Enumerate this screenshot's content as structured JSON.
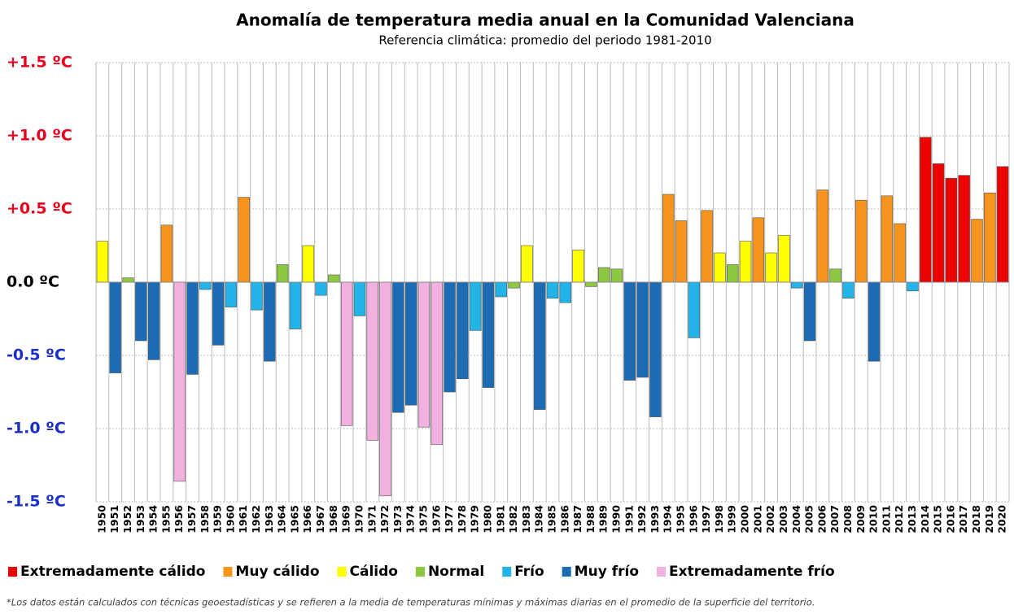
{
  "chart_data": {
    "type": "bar",
    "title": "Anomalía de temperatura media anual en la Comunidad Valenciana",
    "subtitle": "Referencia climática: promedio del periodo 1981-2010",
    "categories": [
      "1950",
      "1951",
      "1952",
      "1953",
      "1954",
      "1955",
      "1956",
      "1957",
      "1958",
      "1959",
      "1960",
      "1961",
      "1962",
      "1963",
      "1964",
      "1965",
      "1966",
      "1967",
      "1968",
      "1969",
      "1970",
      "1971",
      "1972",
      "1973",
      "1974",
      "1975",
      "1976",
      "1977",
      "1978",
      "1979",
      "1980",
      "1981",
      "1982",
      "1983",
      "1984",
      "1985",
      "1986",
      "1987",
      "1988",
      "1989",
      "1990",
      "1991",
      "1992",
      "1993",
      "1994",
      "1995",
      "1996",
      "1997",
      "1998",
      "1999",
      "2000",
      "2001",
      "2002",
      "2003",
      "2004",
      "2005",
      "2006",
      "2007",
      "2008",
      "2009",
      "2010",
      "2011",
      "2012",
      "2013",
      "2014",
      "2015",
      "2016",
      "2017",
      "2018",
      "2019",
      "2020"
    ],
    "values": [
      0.28,
      -0.62,
      0.03,
      -0.4,
      -0.53,
      0.39,
      -1.36,
      -0.63,
      -0.05,
      -0.43,
      -0.17,
      0.58,
      -0.19,
      -0.54,
      0.12,
      -0.32,
      0.25,
      -0.09,
      0.05,
      -0.98,
      -0.23,
      -1.08,
      -1.46,
      -0.89,
      -0.84,
      -0.99,
      -1.11,
      -0.75,
      -0.66,
      -0.33,
      -0.72,
      -0.1,
      -0.04,
      0.25,
      -0.87,
      -0.11,
      -0.14,
      0.22,
      -0.03,
      0.1,
      0.09,
      -0.67,
      -0.65,
      -0.92,
      0.6,
      0.42,
      -0.38,
      0.49,
      0.2,
      0.12,
      0.28,
      0.44,
      0.2,
      0.32,
      -0.04,
      -0.4,
      0.63,
      0.09,
      -0.11,
      0.56,
      -0.54,
      0.59,
      0.4,
      -0.06,
      0.99,
      0.81,
      0.71,
      0.73,
      0.43,
      0.61,
      0.79
    ],
    "colors": [
      "#ffff00",
      "#1b6bb5",
      "#8dc63f",
      "#1b6bb5",
      "#1b6bb5",
      "#f7941d",
      "#f0b0e0",
      "#1b6bb5",
      "#22b4e8",
      "#1b6bb5",
      "#22b4e8",
      "#f7941d",
      "#22b4e8",
      "#1b6bb5",
      "#8dc63f",
      "#22b4e8",
      "#ffff00",
      "#22b4e8",
      "#8dc63f",
      "#f0b0e0",
      "#22b4e8",
      "#f0b0e0",
      "#f0b0e0",
      "#1b6bb5",
      "#1b6bb5",
      "#f0b0e0",
      "#f0b0e0",
      "#1b6bb5",
      "#1b6bb5",
      "#22b4e8",
      "#1b6bb5",
      "#22b4e8",
      "#8dc63f",
      "#ffff00",
      "#1b6bb5",
      "#22b4e8",
      "#22b4e8",
      "#ffff00",
      "#8dc63f",
      "#8dc63f",
      "#8dc63f",
      "#1b6bb5",
      "#1b6bb5",
      "#1b6bb5",
      "#f7941d",
      "#f7941d",
      "#22b4e8",
      "#f7941d",
      "#ffff00",
      "#8dc63f",
      "#ffff00",
      "#f7941d",
      "#ffff00",
      "#ffff00",
      "#22b4e8",
      "#1b6bb5",
      "#f7941d",
      "#8dc63f",
      "#22b4e8",
      "#f7941d",
      "#1b6bb5",
      "#f7941d",
      "#f7941d",
      "#22b4e8",
      "#ee0000",
      "#ee0000",
      "#ee0000",
      "#ee0000",
      "#f7941d",
      "#f7941d",
      "#ee0000"
    ],
    "ylim": [
      -1.5,
      1.5
    ],
    "yticks": [
      {
        "value": 1.5,
        "label": "+1.5 ºC"
      },
      {
        "value": 1.0,
        "label": "+1.0 ºC"
      },
      {
        "value": 0.5,
        "label": "+0.5 ºC"
      },
      {
        "value": 0,
        "label": "0.0 ºC"
      },
      {
        "value": -0.5,
        "label": "-0.5 ºC"
      },
      {
        "value": -1.0,
        "label": "-1.0 ºC"
      },
      {
        "value": -1.5,
        "label": "-1.5 ºC"
      }
    ],
    "grid": true,
    "legend": [
      {
        "name": "Extremadamente cálido",
        "color": "#ee0000"
      },
      {
        "name": "Muy cálido",
        "color": "#f7941d"
      },
      {
        "name": "Cálido",
        "color": "#ffff00"
      },
      {
        "name": "Normal",
        "color": "#8dc63f"
      },
      {
        "name": "Frío",
        "color": "#22b4e8"
      },
      {
        "name": "Muy frío",
        "color": "#1b6bb5"
      },
      {
        "name": "Extremadamente frío",
        "color": "#f0b0e0"
      }
    ],
    "footnote": "*Los datos están calculados con técnicas geoestadísticas y se refieren a la media de temperaturas mínimas y máximas diarias en el promedio de la superficie del territorio."
  }
}
